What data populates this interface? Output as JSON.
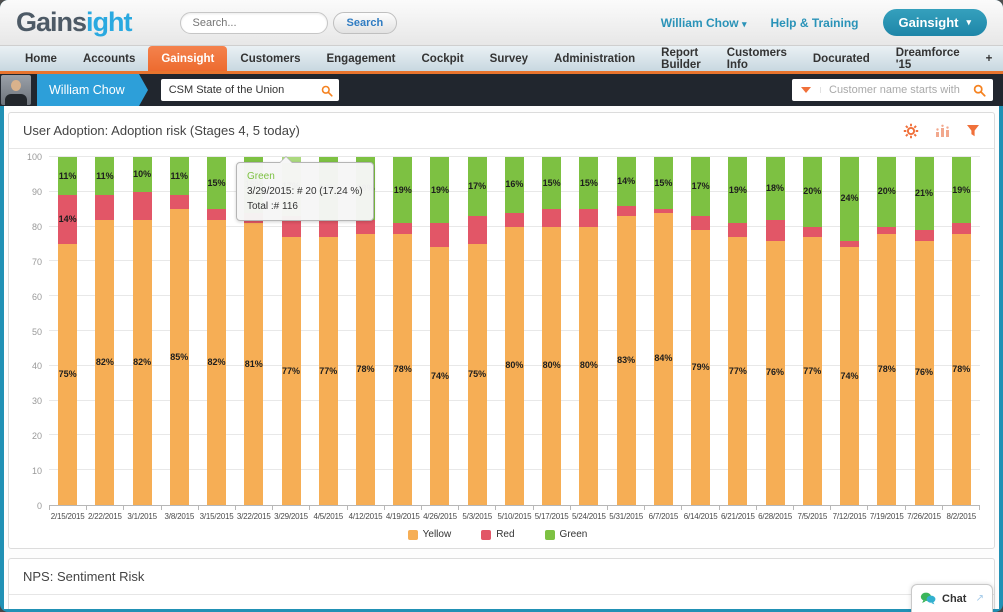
{
  "header": {
    "logo_prefix": "Gains",
    "logo_suffix": "ight",
    "search_placeholder": "Search...",
    "search_button": "Search",
    "user_menu": "William Chow",
    "help_link": "Help & Training",
    "app_button": "Gainsight"
  },
  "nav": {
    "items": [
      {
        "label": "Home"
      },
      {
        "label": "Accounts"
      },
      {
        "label": "Gainsight",
        "active": true
      },
      {
        "label": "Customers"
      },
      {
        "label": "Engagement"
      },
      {
        "label": "Cockpit"
      },
      {
        "label": "Survey"
      },
      {
        "label": "Administration"
      },
      {
        "label": "Report Builder"
      },
      {
        "label": "Customers Info"
      },
      {
        "label": "Docurated"
      },
      {
        "label": "Dreamforce '15"
      },
      {
        "label": "+"
      }
    ]
  },
  "subheader": {
    "user_name": "William Chow",
    "dashboard_search_value": "CSM State of the Union",
    "filter_placeholder": "Customer name starts with"
  },
  "panels": {
    "adoption_title": "User Adoption: Adoption risk (Stages 4, 5 today)",
    "nps_title": "NPS: Sentiment Risk"
  },
  "chat": {
    "label": "Chat"
  },
  "chart_data": {
    "type": "bar",
    "stacked": true,
    "title": "User Adoption: Adoption risk (Stages 4, 5 today)",
    "xlabel": "",
    "ylabel": "",
    "ylim": [
      0,
      100
    ],
    "ytick_step": 10,
    "grid": true,
    "legend_position": "bottom",
    "value_label_suffix": "%",
    "value_label_min_to_show": 10,
    "categories": [
      "2/15/2015",
      "2/22/2015",
      "3/1/2015",
      "3/8/2015",
      "3/15/2015",
      "3/22/2015",
      "3/29/2015",
      "4/5/2015",
      "4/12/2015",
      "4/19/2015",
      "4/26/2015",
      "5/3/2015",
      "5/10/2015",
      "5/17/2015",
      "5/24/2015",
      "5/31/2015",
      "6/7/2015",
      "6/14/2015",
      "6/21/2015",
      "6/28/2015",
      "7/5/2015",
      "7/12/2015",
      "7/19/2015",
      "7/26/2015",
      "8/2/2015"
    ],
    "series": [
      {
        "name": "Yellow",
        "color": "#f6ae55",
        "values": [
          75,
          82,
          82,
          85,
          82,
          81,
          77,
          77,
          78,
          78,
          74,
          75,
          80,
          80,
          80,
          83,
          84,
          79,
          77,
          76,
          77,
          74,
          78,
          76,
          78
        ]
      },
      {
        "name": "Red",
        "color": "#e25667",
        "values": [
          14,
          7,
          8,
          4,
          3,
          3,
          6,
          5,
          4,
          3,
          7,
          8,
          4,
          5,
          5,
          3,
          1,
          4,
          4,
          6,
          3,
          2,
          2,
          3,
          3
        ]
      },
      {
        "name": "Green",
        "color": "#7dc142",
        "values": [
          11,
          11,
          10,
          11,
          15,
          16,
          17,
          18,
          18,
          19,
          19,
          17,
          16,
          15,
          15,
          14,
          15,
          17,
          19,
          18,
          20,
          24,
          20,
          21,
          19
        ]
      }
    ],
    "hovered_bar_index": 6,
    "hovered_segment_color": "#abd97e",
    "tooltip": {
      "series": "Green",
      "line1": "3/29/2015: # 20 (17.24 %)",
      "line2": "Total :# 116"
    }
  }
}
